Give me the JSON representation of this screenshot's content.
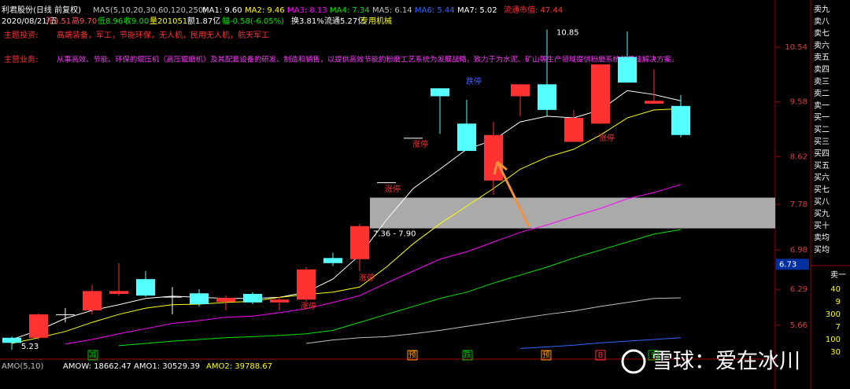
{
  "chart_data": {
    "type": "candlestick",
    "title": "利君股份(日线 前复权)",
    "indicator": "MA5(5,10,20,30,60,120,250)",
    "open": [
      5.44,
      5.44,
      5.85,
      5.92,
      6.21,
      6.47,
      6.16,
      6.22,
      6.07,
      6.21,
      6.06,
      6.11,
      6.84,
      6.82,
      8.17,
      8.95,
      9.82,
      9.2,
      8.2,
      9.68,
      9.89,
      8.88,
      9.2,
      10.37,
      9.55,
      9.51
    ],
    "high": [
      5.46,
      5.87,
      5.96,
      6.37,
      6.75,
      6.61,
      6.33,
      6.29,
      6.18,
      6.24,
      6.16,
      6.68,
      6.93,
      7.44,
      8.17,
      8.95,
      9.82,
      9.62,
      9.23,
      9.89,
      10.85,
      9.44,
      10.24,
      10.82,
      10.15,
      9.7
    ],
    "low": [
      5.23,
      5.4,
      5.71,
      5.85,
      6.18,
      6.16,
      5.85,
      5.99,
      5.92,
      6.03,
      5.92,
      6.08,
      6.7,
      6.61,
      8.17,
      8.95,
      9.02,
      8.72,
      7.95,
      9.33,
      9.33,
      8.88,
      9.2,
      9.92,
      9.55,
      8.96
    ],
    "close": [
      5.35,
      5.85,
      5.85,
      6.26,
      6.26,
      6.18,
      6.16,
      6.03,
      6.14,
      6.06,
      6.11,
      6.64,
      6.75,
      7.4,
      8.17,
      8.95,
      9.68,
      8.72,
      9.0,
      9.89,
      9.44,
      9.3,
      10.24,
      9.92,
      9.6,
      9.0
    ],
    "up_color": "#ff3232",
    "down_color": "#54ffff",
    "flat_color": "#ffffff",
    "series": [
      {
        "name": "MA1: 9.60",
        "color": "#ffffff",
        "values": [
          5.41,
          5.57,
          5.78,
          5.92,
          6.02,
          6.13,
          6.17,
          6.15,
          6.13,
          6.13,
          6.15,
          6.24,
          6.47,
          6.89,
          7.51,
          8.06,
          8.4,
          8.75,
          8.91,
          9.23,
          9.33,
          9.3,
          9.44,
          9.78,
          9.71,
          9.6
        ]
      },
      {
        "name": "MA2: 9.46",
        "color": "#ffff00",
        "values": [
          5.34,
          5.44,
          5.55,
          5.71,
          5.85,
          5.96,
          6.02,
          6.03,
          6.06,
          6.08,
          6.15,
          6.2,
          6.24,
          6.33,
          6.68,
          7.09,
          7.44,
          7.75,
          8.06,
          8.4,
          8.61,
          8.75,
          9.0,
          9.3,
          9.44,
          9.46
        ]
      },
      {
        "name": "MA3: 8.13",
        "color": "#ff00ff",
        "values": [
          null,
          null,
          5.33,
          5.41,
          5.51,
          5.6,
          5.69,
          5.74,
          5.8,
          5.82,
          5.88,
          5.95,
          6.06,
          6.18,
          6.4,
          6.61,
          6.82,
          6.95,
          7.12,
          7.29,
          7.42,
          7.57,
          7.71,
          7.88,
          7.99,
          8.13
        ]
      },
      {
        "name": "MA4: 7.34",
        "color": "#00e600",
        "values": [
          null,
          null,
          null,
          null,
          5.3,
          5.34,
          5.38,
          5.41,
          5.44,
          5.46,
          5.48,
          5.51,
          5.57,
          5.71,
          5.85,
          5.99,
          6.13,
          6.24,
          6.4,
          6.54,
          6.68,
          6.84,
          6.98,
          7.12,
          7.26,
          7.34
        ]
      },
      {
        "name": "MA5: 6.14",
        "color": "#c0c0c0",
        "values": [
          null,
          null,
          null,
          null,
          null,
          null,
          null,
          null,
          null,
          null,
          null,
          5.34,
          5.4,
          5.44,
          5.46,
          5.51,
          5.57,
          5.64,
          5.71,
          5.78,
          5.85,
          5.91,
          5.99,
          6.06,
          6.13,
          6.14
        ]
      },
      {
        "name": "MA6: 5.44",
        "color": "#3366ff",
        "values": [
          null,
          null,
          null,
          null,
          null,
          null,
          null,
          null,
          null,
          null,
          null,
          null,
          null,
          null,
          null,
          null,
          null,
          null,
          null,
          5.25,
          5.28,
          5.31,
          5.35,
          5.38,
          5.41,
          5.44
        ]
      }
    ],
    "extra_legend": {
      "label": "MA7: 5.02",
      "color": "#ffffff"
    },
    "ylim": [
      5.23,
      11.37
    ],
    "yticks": [
      10.54,
      9.58,
      8.62,
      7.78,
      6.98,
      6.29,
      5.66
    ],
    "zone": {
      "low": 7.36,
      "high": 7.9,
      "label": "7.36 - 7.90"
    },
    "cursor": 6.73,
    "limit_labels": [
      "涨停",
      "涨停",
      "涨停",
      "涨停",
      "跌停",
      "涨停"
    ]
  },
  "header": {
    "items": [
      {
        "text": "2020/08/21/五",
        "color": "#ffffff"
      },
      {
        "text": "开9.51",
        "color": "#ff5050"
      },
      {
        "text": "高9.70",
        "color": "#ff5050"
      },
      {
        "text": "低8.96",
        "color": "#00e600"
      },
      {
        "text": "收9.00",
        "color": "#00e600"
      },
      {
        "text": "量201051",
        "color": "#ffff00"
      },
      {
        "text": "额1.87亿",
        "color": "#ffffff"
      },
      {
        "text": "幅-0.58(-6.05%)",
        "color": "#00e600"
      },
      {
        "text": "换3.81%",
        "color": "#ffffff"
      },
      {
        "text": "流通5.27亿",
        "color": "#ffffff"
      },
      {
        "text": "专用机械",
        "color": "#ffff00"
      }
    ],
    "market_cap": "流通市值: 47.44"
  },
  "theme": {
    "label": "主题投资:",
    "text": "高端装备，军工，节能环保，无人机，民用无人机，航天军工"
  },
  "business": {
    "label": "主营业务:",
    "text": "从事高效、节能、环保的辊压机（高压辊磨机）及其配套设备的研发、制造和销售，以提供高效节能的粉磨工艺系统为发展战略，致力于为水泥、矿山等生产领域提供粉磨系统的最佳解决方案。"
  },
  "order_book": [
    "卖九",
    "卖八",
    "卖七",
    "卖六",
    "卖五",
    "卖四",
    "卖三",
    "卖二",
    "卖一",
    "买一",
    "买二",
    "买三",
    "买四",
    "买五",
    "买六",
    "买七",
    "买八",
    "买九",
    "买十",
    "卖均",
    "买均"
  ],
  "depth": {
    "label": "卖一",
    "volumes": [
      40,
      9,
      300,
      7,
      100,
      30
    ]
  },
  "events": [
    {
      "text": "减",
      "color": "#00c000"
    },
    {
      "text": "预",
      "color": "#ff9900"
    },
    {
      "text": "跌",
      "color": "#00c000"
    },
    {
      "text": "预",
      "color": "#ff9900"
    },
    {
      "text": "B",
      "color": "#ff3232"
    },
    {
      "text": "S",
      "color": "#00c000"
    }
  ],
  "amo": [
    {
      "text": "AMO(5,10)",
      "color": "#c0c0c0"
    },
    {
      "text": "AMOW: 18662.47",
      "color": "#ffffff"
    },
    {
      "text": "AMO1: 30529.39",
      "color": "#ffffff"
    },
    {
      "text": "AMO2: 39788.67",
      "color": "#ffff00"
    }
  ],
  "watermark": "雪球：爱在冰川"
}
